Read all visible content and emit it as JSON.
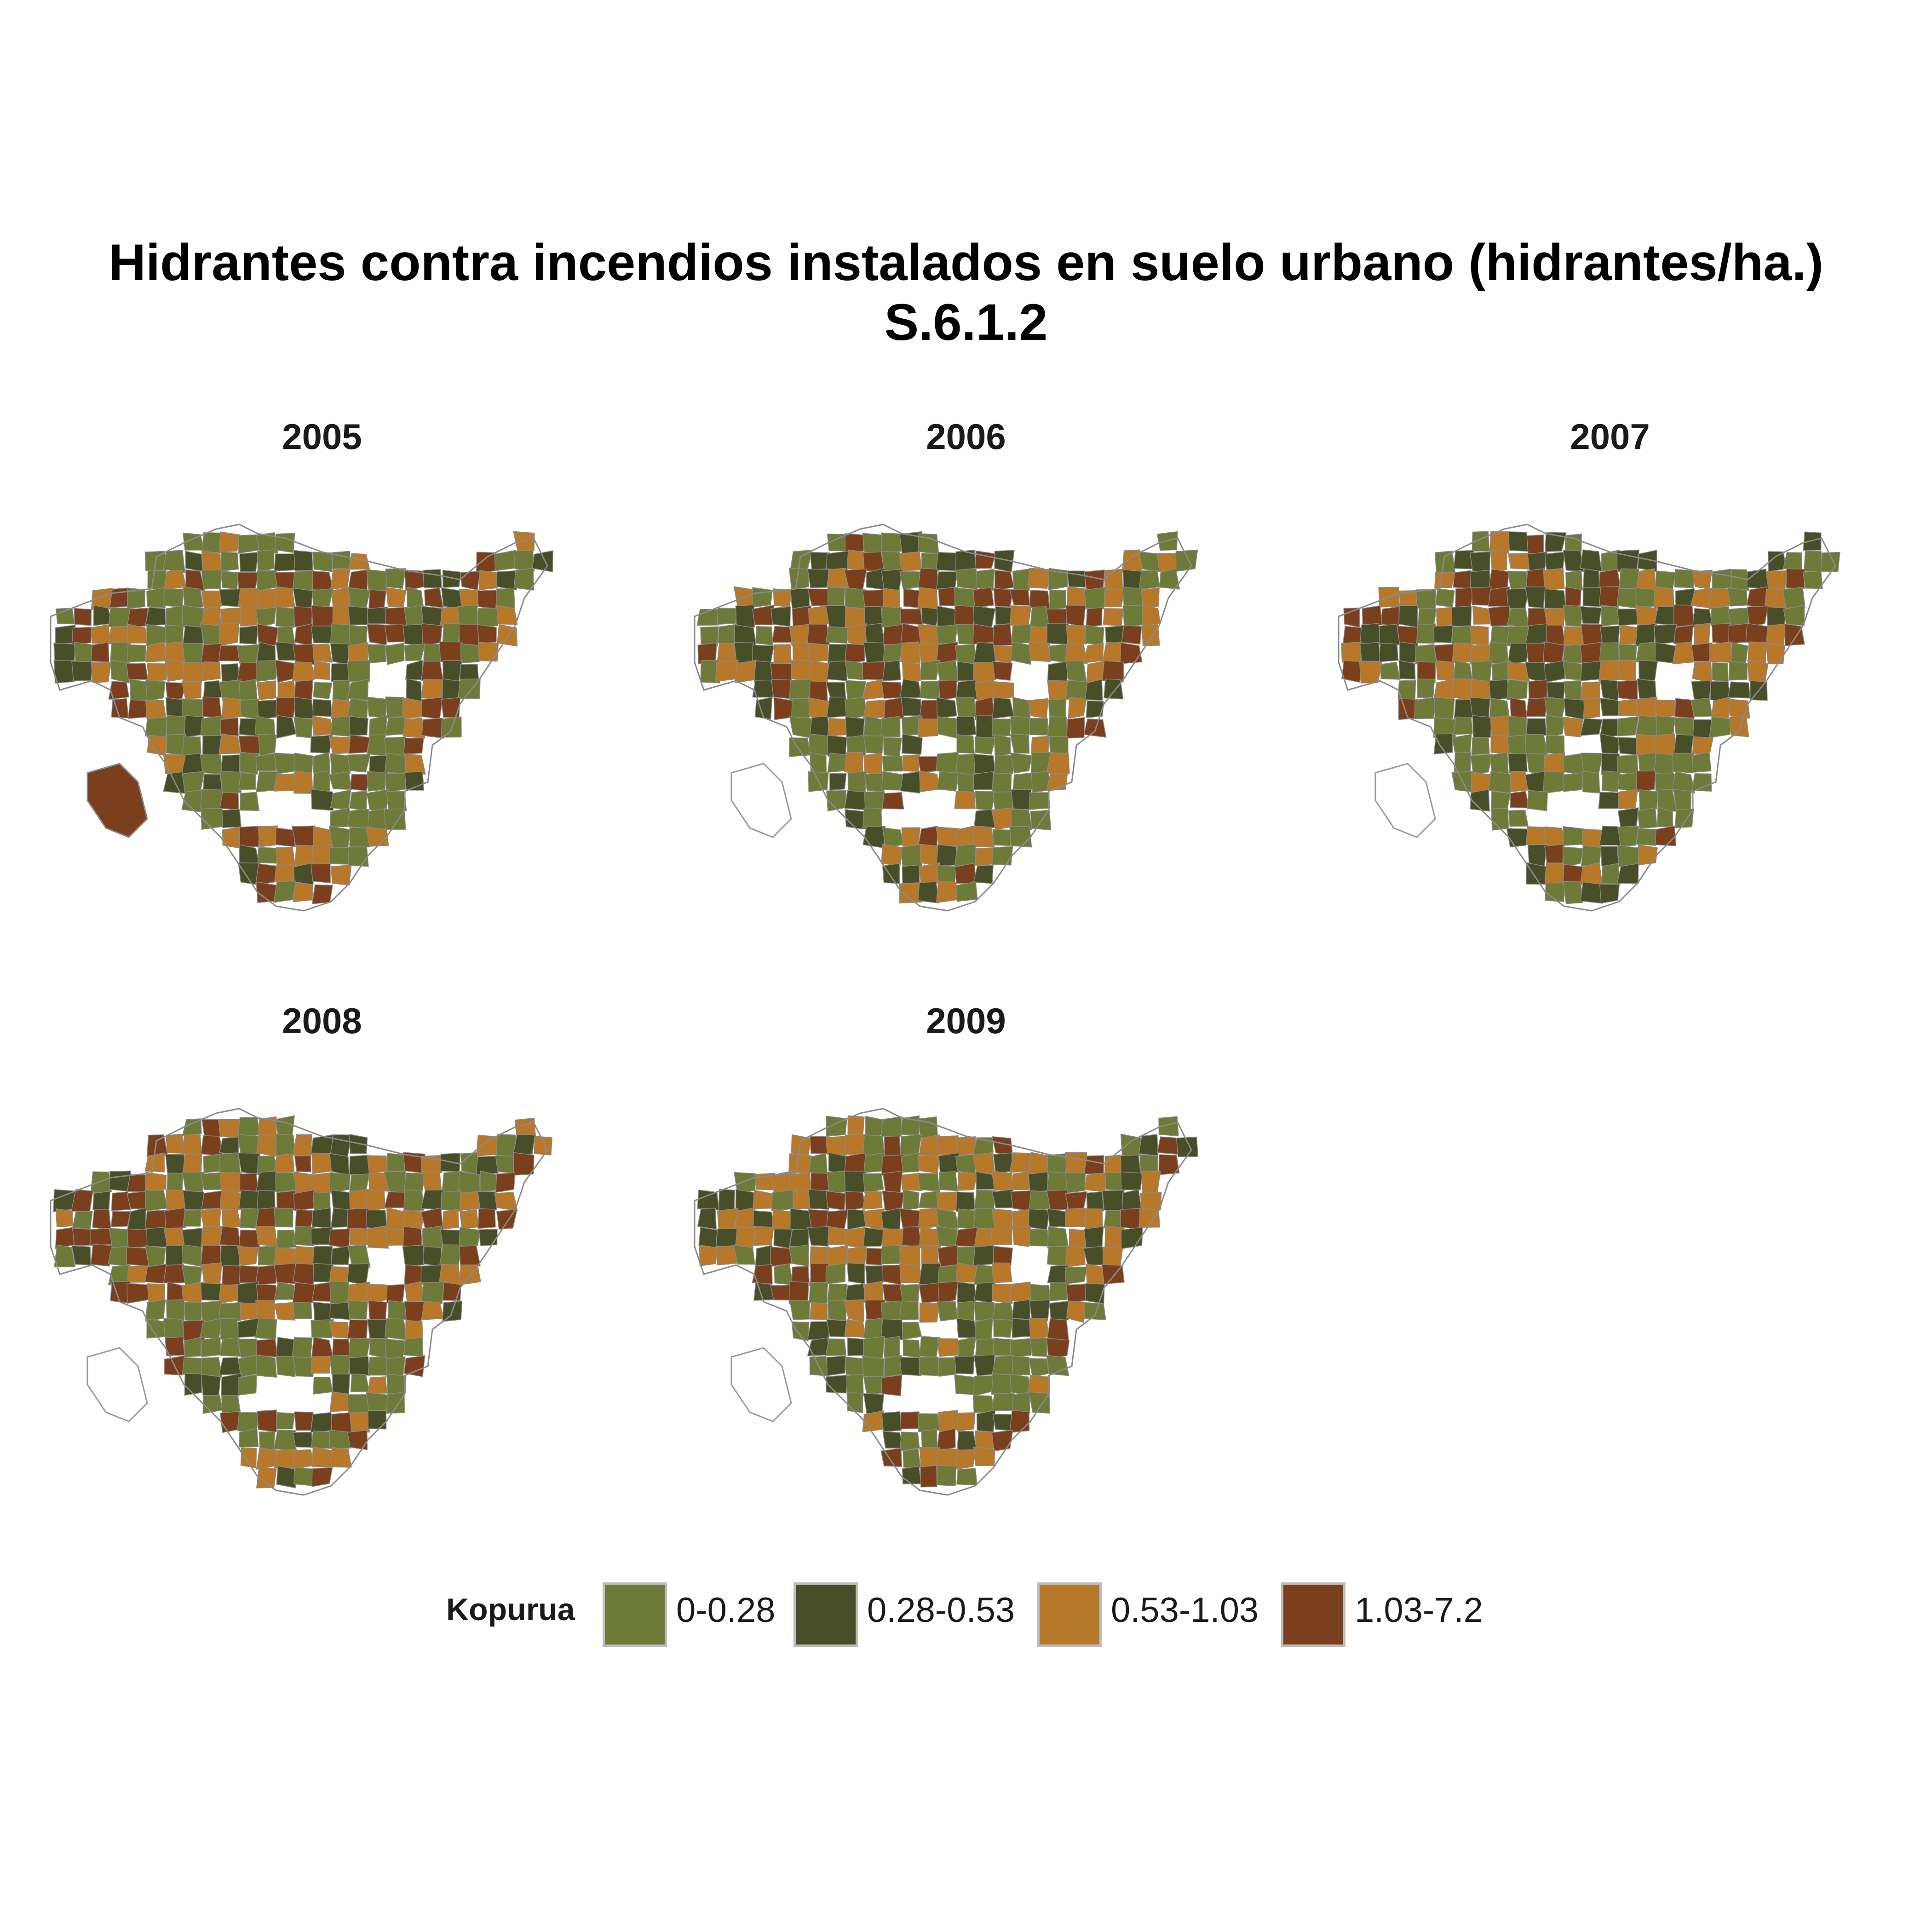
{
  "title": "Hidrantes contra incendios instalados en suelo urbano (hidrantes/ha.)",
  "subtitle": "S.6.1.2",
  "panels": [
    {
      "year": "2005",
      "seed": 11,
      "missing": false
    },
    {
      "year": "2006",
      "seed": 23,
      "missing": true
    },
    {
      "year": "2007",
      "seed": 37,
      "missing": true
    },
    {
      "year": "2008",
      "seed": 41,
      "missing": true
    },
    {
      "year": "2009",
      "seed": 53,
      "missing": true
    }
  ],
  "legend": {
    "title": "Kopurua",
    "items": [
      {
        "label": "0-0.28",
        "color": "#6e7a37"
      },
      {
        "label": "0.28-0.53",
        "color": "#484e27"
      },
      {
        "label": "0.53-1.03",
        "color": "#b8782a"
      },
      {
        "label": "1.03-7.2",
        "color": "#7a3f1c"
      }
    ]
  }
}
